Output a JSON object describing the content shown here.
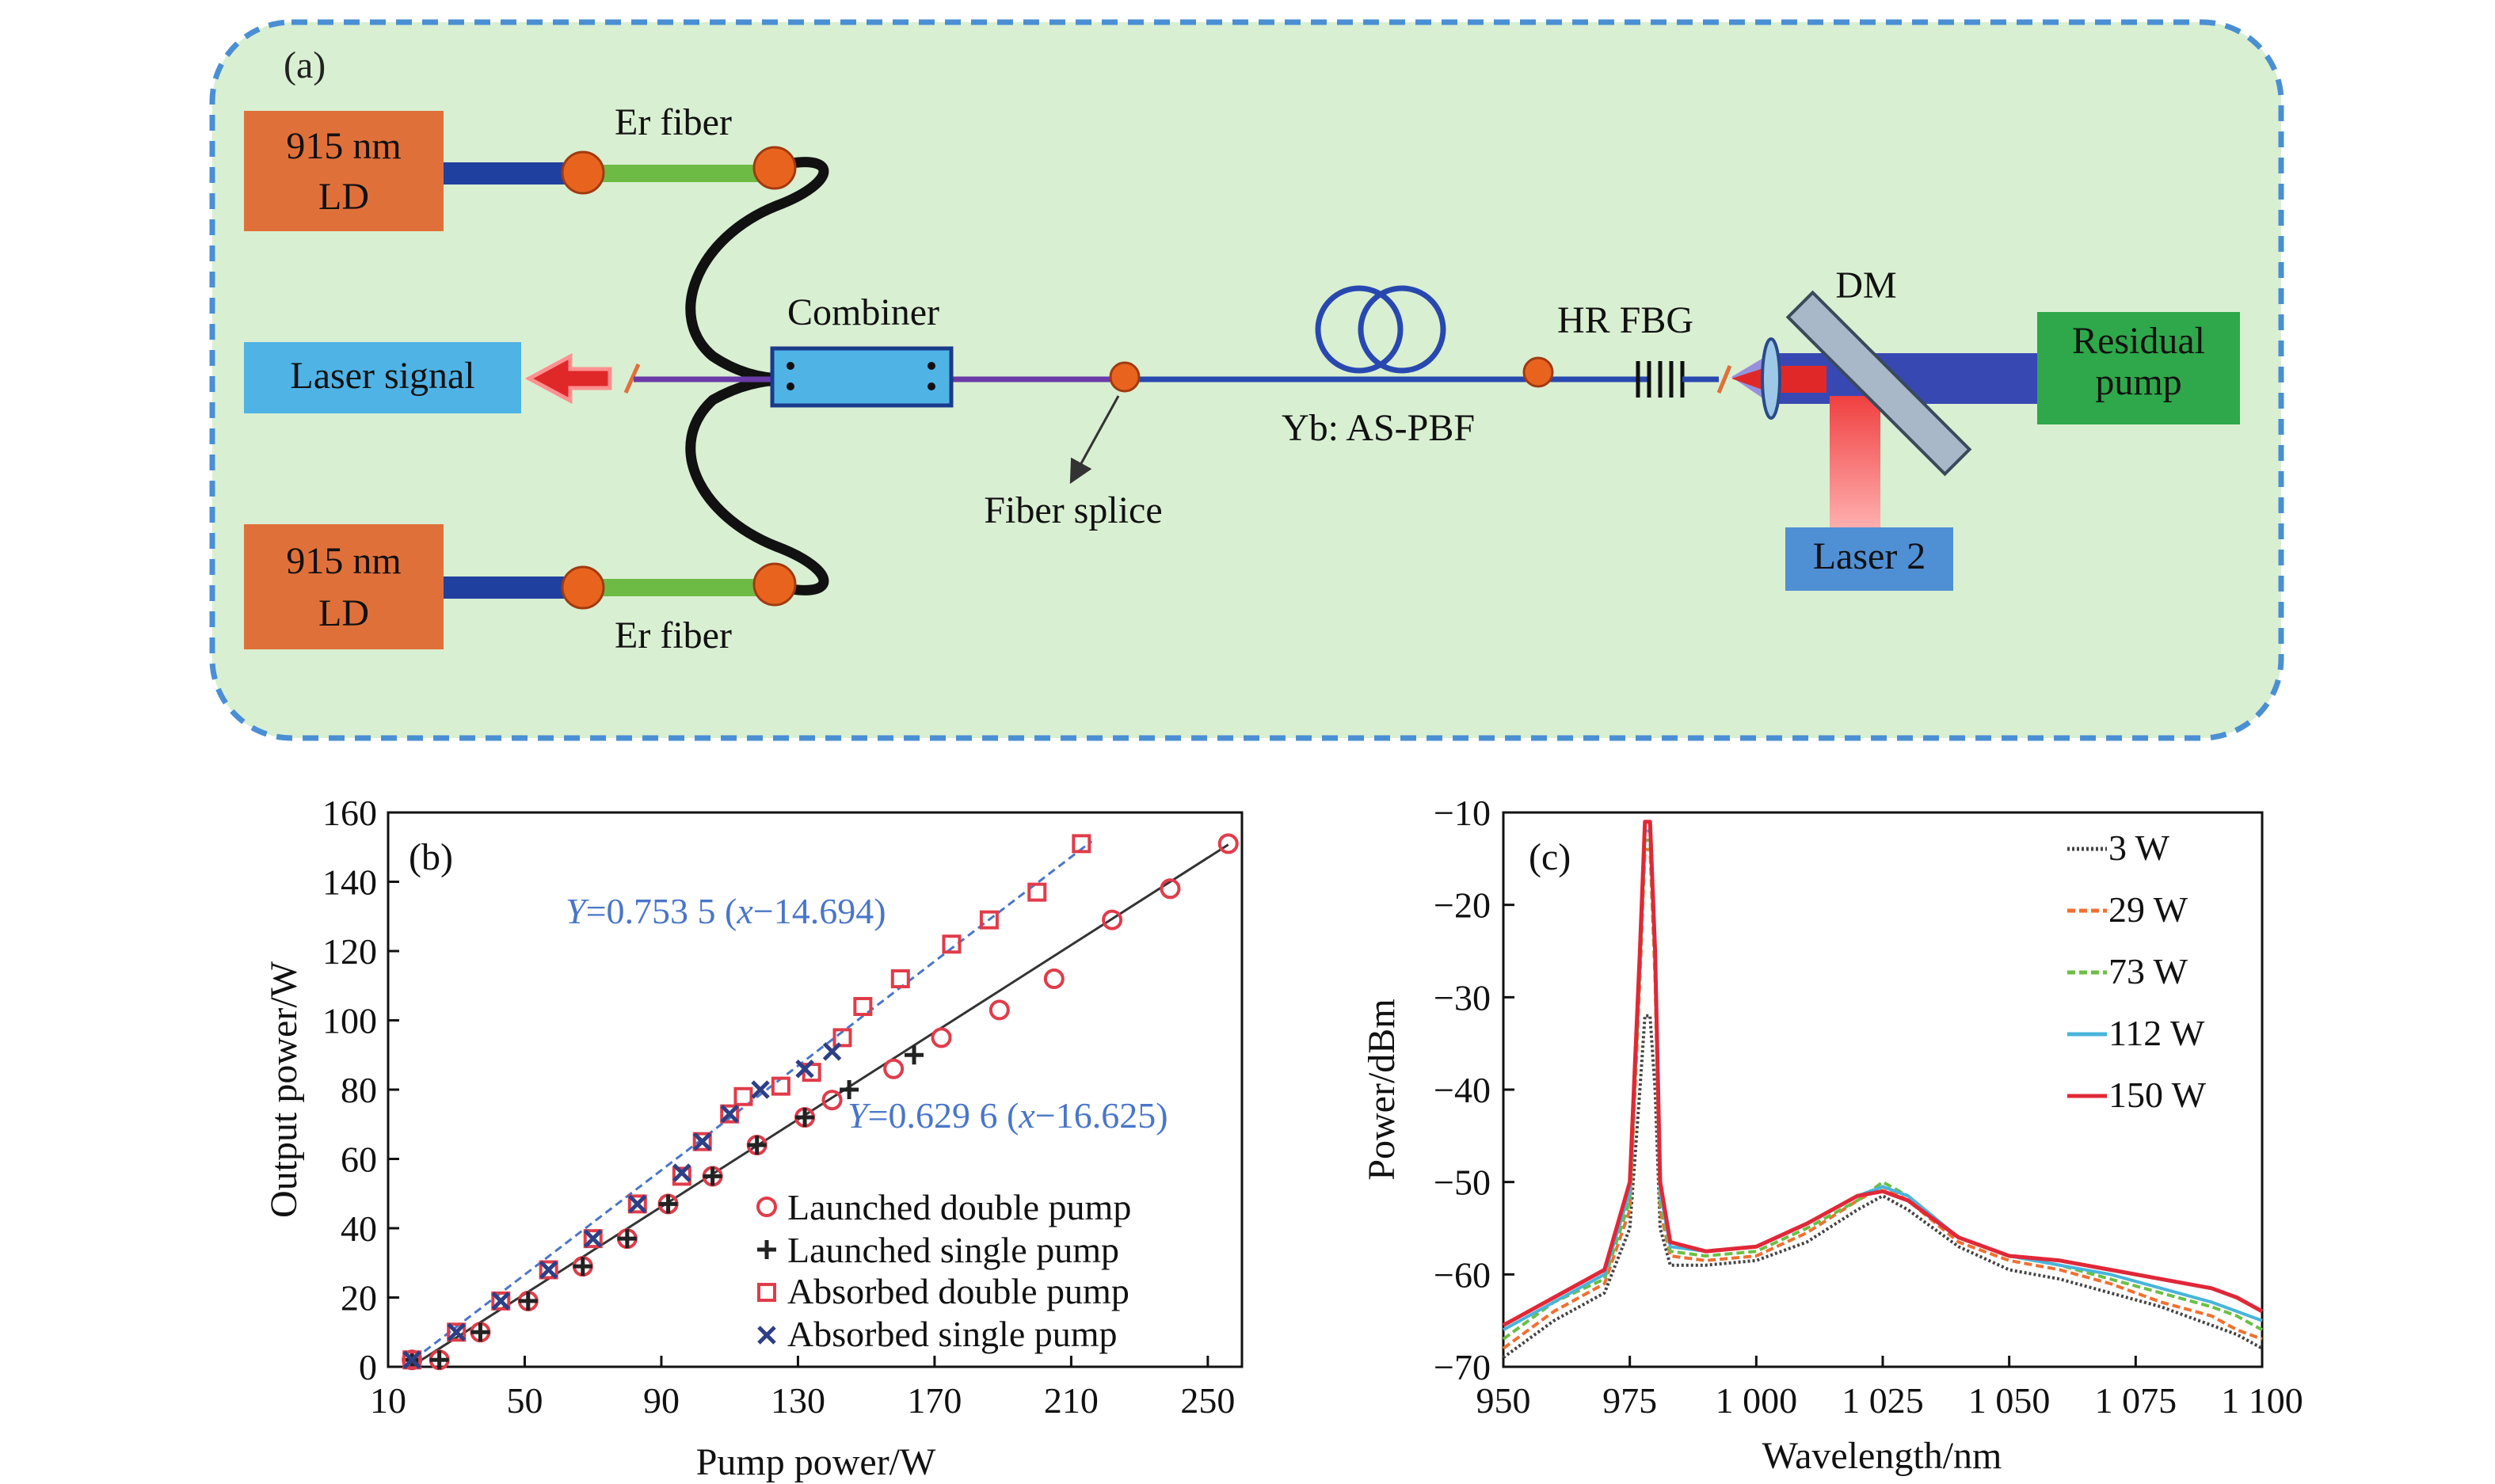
{
  "panel_a": {
    "label": "(a)",
    "ld_top": {
      "line1": "915 nm",
      "line2": "LD"
    },
    "ld_bottom": {
      "line1": "915 nm",
      "line2": "LD"
    },
    "er_fiber_top": "Er fiber",
    "er_fiber_bottom": "Er fiber",
    "combiner": "Combiner",
    "laser_signal": "Laser signal",
    "fiber_splice": "Fiber splice",
    "yb_fiber": "Yb: AS-PBF",
    "hr_fbg": "HR FBG",
    "dm": "DM",
    "residual_pump": {
      "line1": "Residual",
      "line2": "pump"
    },
    "laser2": "Laser 2",
    "colors": {
      "panel_bg": "#d9efd2",
      "panel_border": "#4a8fd4",
      "ld_box": "#e0703a",
      "laser_signal_box": "#4fb3e6",
      "residual_pump_box": "#2ea84a",
      "laser2_box": "#4f8fd4",
      "splice_dot": "#e8641e",
      "er_fiber": "#6dbb45",
      "pump_fiber": "#2040a0"
    }
  },
  "chart_data": [
    {
      "panel": "(b)",
      "type": "scatter",
      "xlabel": "Pump power/W",
      "ylabel": "Output power/W",
      "xlim": [
        10,
        260
      ],
      "ylim": [
        0,
        160
      ],
      "xticks": [
        "10",
        "50",
        "90",
        "130",
        "170",
        "210",
        "250"
      ],
      "yticks": [
        "0",
        "20",
        "40",
        "60",
        "80",
        "100",
        "120",
        "140",
        "160"
      ],
      "fits": [
        {
          "prefix": "Y",
          "label": "=0.753 5 (",
          "var": "x",
          "rest": "−14.694)",
          "slope": 0.7535,
          "x0": 14.694,
          "range": [
            14.7,
            216
          ],
          "color": "#4a76c8"
        },
        {
          "prefix": "Y",
          "label": "=0.629 6 (",
          "var": "x",
          "rest": "−16.625)",
          "slope": 0.6296,
          "x0": 16.625,
          "range": [
            16.6,
            256
          ],
          "color": "#333333"
        }
      ],
      "series": [
        {
          "name": "Launched double pump",
          "marker": "circle",
          "color": "#e03c4a",
          "x": [
            17,
            25,
            37,
            51,
            67,
            80,
            92,
            105,
            118,
            132,
            140,
            158,
            172,
            189,
            205,
            222,
            239,
            256
          ],
          "y": [
            2,
            2,
            10,
            19,
            29,
            37,
            47,
            55,
            64,
            72,
            77,
            86,
            95,
            103,
            112,
            129,
            138,
            151
          ]
        },
        {
          "name": "Launched single pump",
          "marker": "plus",
          "color": "#222222",
          "x": [
            17,
            25,
            37,
            51,
            67,
            80,
            92,
            105,
            118,
            132,
            145,
            164
          ],
          "y": [
            2,
            2,
            10,
            19,
            29,
            37,
            47,
            55,
            64,
            72,
            80,
            90
          ]
        },
        {
          "name": "Absorbed double pump",
          "marker": "square",
          "color": "#e03c4a",
          "x": [
            17,
            30,
            43,
            57,
            70,
            83,
            96,
            102,
            110,
            114,
            125,
            134,
            143,
            149,
            160,
            175,
            186,
            200,
            213
          ],
          "y": [
            2,
            10,
            19,
            28,
            37,
            47,
            55,
            65,
            73,
            78,
            81,
            85,
            95,
            104,
            112,
            122,
            129,
            137,
            151
          ]
        },
        {
          "name": "Absorbed single pump",
          "marker": "x",
          "color": "#2f3f85",
          "x": [
            17,
            30,
            43,
            57,
            70,
            83,
            96,
            102,
            110,
            119,
            132,
            140
          ],
          "y": [
            2,
            10,
            19,
            28,
            37,
            47,
            56,
            65,
            73,
            80,
            86,
            91
          ]
        }
      ]
    },
    {
      "panel": "(c)",
      "type": "line",
      "xlabel": "Wavelength/nm",
      "ylabel": "Power/dBm",
      "xlim": [
        950,
        1100
      ],
      "ylim": [
        -70,
        -10
      ],
      "xticks": [
        "950",
        "975",
        "1 000",
        "1 025",
        "1 050",
        "1 075",
        "1 100"
      ],
      "yticks": [
        "−10",
        "−20",
        "−30",
        "−40",
        "−50",
        "−60",
        "−70"
      ],
      "x": [
        950,
        960,
        970,
        975,
        977,
        978,
        979,
        980,
        981,
        983,
        990,
        1000,
        1010,
        1020,
        1025,
        1030,
        1040,
        1050,
        1060,
        1070,
        1080,
        1090,
        1095,
        1100
      ],
      "series": [
        {
          "name": "3 W",
          "color": "#444444",
          "dash": "3,3",
          "y": [
            -69,
            -65,
            -62,
            -55,
            -40,
            -32,
            -32,
            -40,
            -55,
            -59,
            -59,
            -58.5,
            -56.5,
            -53,
            -51.5,
            -53,
            -57,
            -59.5,
            -60.5,
            -62,
            -63.5,
            -65.5,
            -66.5,
            -68
          ]
        },
        {
          "name": "29 W",
          "color": "#f07030",
          "dash": "10,5",
          "y": [
            -68,
            -64,
            -61,
            -53,
            -28,
            -14,
            -14,
            -28,
            -53,
            -58,
            -58.5,
            -58,
            -55.5,
            -52,
            -50.5,
            -52,
            -56.5,
            -58.5,
            -59.5,
            -61,
            -63,
            -64.5,
            -66,
            -67
          ]
        },
        {
          "name": "73 W",
          "color": "#6bbf45",
          "dash": "10,5",
          "y": [
            -67,
            -63,
            -60.5,
            -52,
            -27,
            -13,
            -13,
            -27,
            -52,
            -57.5,
            -58,
            -57.5,
            -55,
            -52,
            -50,
            -51.5,
            -56,
            -58,
            -59,
            -60.5,
            -62,
            -63.5,
            -64.5,
            -66
          ]
        },
        {
          "name": "112 W",
          "color": "#48b4dc",
          "dash": "",
          "y": [
            -66,
            -63,
            -60,
            -51,
            -26,
            -12,
            -12,
            -26,
            -51,
            -57,
            -57.5,
            -57,
            -54.5,
            -51.5,
            -50.5,
            -51.5,
            -56,
            -58,
            -59,
            -60,
            -61.5,
            -63,
            -64,
            -65
          ]
        },
        {
          "name": "150 W",
          "color": "#e02838",
          "dash": "",
          "y": [
            -65.5,
            -62.5,
            -59.5,
            -50,
            -25,
            -11,
            -11,
            -25,
            -50,
            -56.5,
            -57.5,
            -57,
            -54.5,
            -51.5,
            -51,
            -52,
            -56,
            -58,
            -58.5,
            -59.5,
            -60.5,
            -61.5,
            -62.5,
            -64
          ]
        }
      ]
    }
  ]
}
